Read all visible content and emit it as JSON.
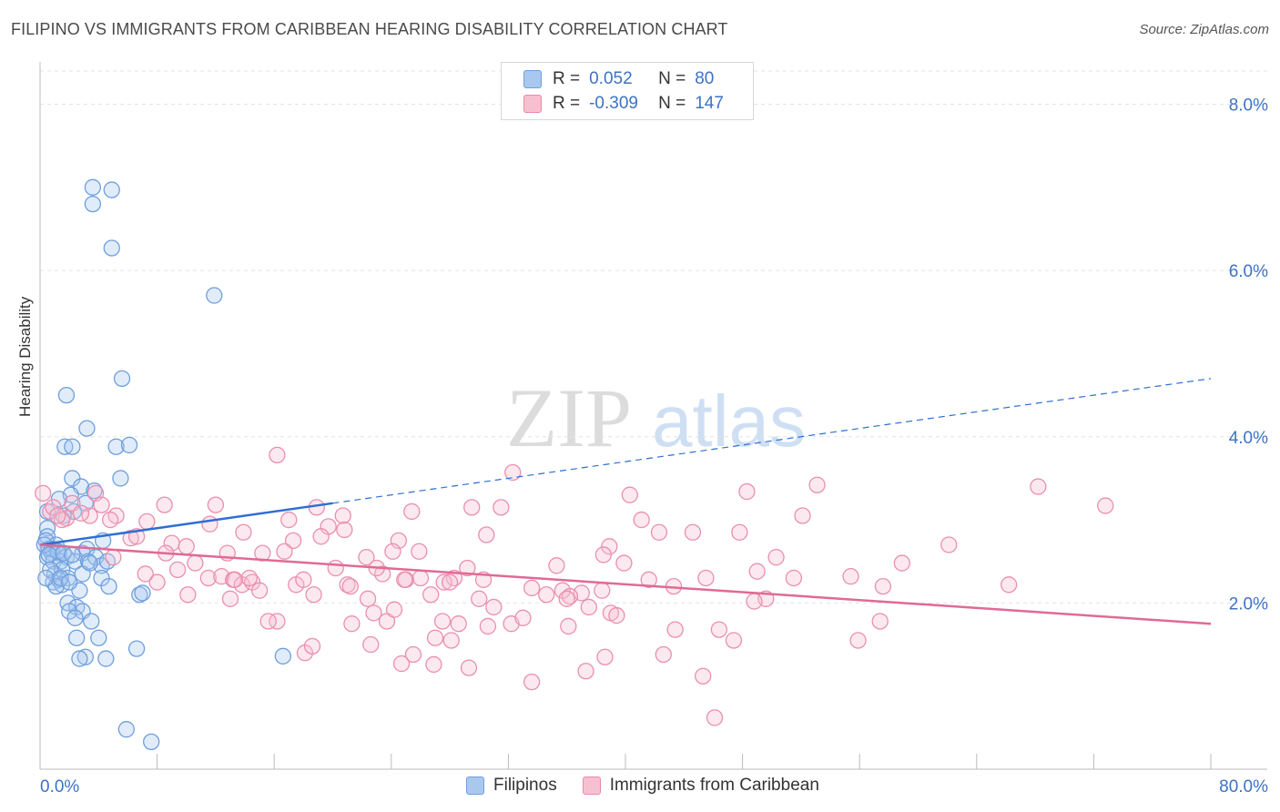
{
  "title": "FILIPINO VS IMMIGRANTS FROM CARIBBEAN HEARING DISABILITY CORRELATION CHART",
  "source": "Source: ZipAtlas.com",
  "watermark": {
    "zip": "ZIP",
    "atlas": "atlas"
  },
  "legend": {
    "rows": [
      {
        "r_label": "R =",
        "r_value": "0.052",
        "n_label": "N =",
        "n_value": "80",
        "color": "#a9c8f0",
        "border": "#6e9fdc"
      },
      {
        "r_label": "R =",
        "r_value": "-0.309",
        "n_label": "N =",
        "n_value": "147",
        "color": "#f7c0d0",
        "border": "#e88aa8"
      }
    ]
  },
  "bottom_legend": {
    "filipinos": "Filipinos",
    "caribbean": "Immigrants from Caribbean"
  },
  "colors": {
    "blue": "#6e9fdc",
    "blue_line": "#2e6fd3",
    "pink": "#ea8fae",
    "pink_line": "#e06a95",
    "axis_text": "#3d72c6",
    "grid": "#e3e3e3"
  },
  "chart_data": {
    "type": "scatter",
    "title": "FILIPINO VS IMMIGRANTS FROM CARIBBEAN HEARING DISABILITY CORRELATION CHART",
    "xlabel": "",
    "ylabel": "Hearing Disability",
    "xlim": [
      0,
      80
    ],
    "ylim": [
      0,
      8.4
    ],
    "x_tick_labels": [
      "0.0%",
      "80.0%"
    ],
    "y_tick_values": [
      2,
      4,
      6,
      8
    ],
    "y_tick_labels": [
      "2.0%",
      "4.0%",
      "6.0%",
      "8.0%"
    ],
    "series": [
      {
        "name": "Filipinos",
        "r": 0.052,
        "n": 80,
        "trend": {
          "x": [
            0,
            80
          ],
          "y": [
            2.7,
            4.7
          ],
          "solid_until_x": 20
        },
        "points": [
          [
            3.6,
            7.0
          ],
          [
            4.9,
            6.97
          ],
          [
            3.6,
            6.8
          ],
          [
            4.9,
            6.27
          ],
          [
            11.9,
            5.7
          ],
          [
            1.8,
            4.5
          ],
          [
            5.6,
            4.7
          ],
          [
            3.2,
            4.1
          ],
          [
            1.7,
            3.88
          ],
          [
            2.2,
            3.88
          ],
          [
            5.2,
            3.88
          ],
          [
            6.1,
            3.9
          ],
          [
            2.2,
            3.5
          ],
          [
            5.5,
            3.5
          ],
          [
            2.8,
            3.4
          ],
          [
            3.7,
            3.35
          ],
          [
            2.1,
            3.3
          ],
          [
            1.3,
            3.25
          ],
          [
            3.1,
            3.2
          ],
          [
            0.5,
            3.1
          ],
          [
            2.3,
            3.1
          ],
          [
            1.6,
            3.05
          ],
          [
            0.5,
            2.9
          ],
          [
            0.5,
            2.8
          ],
          [
            0.4,
            2.75
          ],
          [
            1.1,
            2.7
          ],
          [
            4.3,
            2.75
          ],
          [
            0.6,
            2.65
          ],
          [
            0.8,
            2.6
          ],
          [
            1.3,
            2.6
          ],
          [
            1.8,
            2.55
          ],
          [
            2.9,
            2.6
          ],
          [
            3.2,
            2.65
          ],
          [
            0.5,
            2.55
          ],
          [
            0.9,
            2.5
          ],
          [
            1.4,
            2.5
          ],
          [
            2.4,
            2.5
          ],
          [
            3.3,
            2.5
          ],
          [
            3.8,
            2.55
          ],
          [
            4.2,
            2.45
          ],
          [
            4.6,
            2.5
          ],
          [
            1.0,
            2.35
          ],
          [
            1.5,
            2.4
          ],
          [
            1.9,
            2.3
          ],
          [
            2.9,
            2.35
          ],
          [
            4.2,
            2.3
          ],
          [
            0.9,
            2.25
          ],
          [
            1.3,
            2.28
          ],
          [
            1.5,
            2.22
          ],
          [
            4.7,
            2.2
          ],
          [
            1.1,
            2.2
          ],
          [
            2.7,
            2.15
          ],
          [
            6.8,
            2.1
          ],
          [
            7.0,
            2.12
          ],
          [
            1.9,
            2.0
          ],
          [
            2.5,
            1.95
          ],
          [
            2.0,
            1.9
          ],
          [
            2.9,
            1.9
          ],
          [
            2.4,
            1.82
          ],
          [
            3.5,
            1.78
          ],
          [
            2.5,
            1.58
          ],
          [
            4.0,
            1.58
          ],
          [
            6.6,
            1.45
          ],
          [
            3.1,
            1.35
          ],
          [
            2.7,
            1.33
          ],
          [
            4.5,
            1.33
          ],
          [
            16.6,
            1.36
          ],
          [
            5.9,
            0.48
          ],
          [
            7.6,
            0.33
          ],
          [
            0.8,
            2.65
          ],
          [
            1.2,
            2.62
          ],
          [
            0.3,
            2.7
          ],
          [
            0.6,
            2.58
          ],
          [
            1.6,
            2.6
          ],
          [
            2.2,
            2.58
          ],
          [
            3.4,
            2.48
          ],
          [
            0.7,
            2.4
          ],
          [
            1.4,
            2.3
          ],
          [
            2.0,
            2.25
          ],
          [
            0.4,
            2.3
          ]
        ]
      },
      {
        "name": "Immigrants from Caribbean",
        "r": -0.309,
        "n": 147,
        "trend": {
          "x": [
            0,
            80
          ],
          "y": [
            2.7,
            1.75
          ]
        },
        "points": [
          [
            0.2,
            3.32
          ],
          [
            16.2,
            3.78
          ],
          [
            32.3,
            3.57
          ],
          [
            31.5,
            3.15
          ],
          [
            40.3,
            3.3
          ],
          [
            48.3,
            3.34
          ],
          [
            53.1,
            3.42
          ],
          [
            68.2,
            3.4
          ],
          [
            72.8,
            3.17
          ],
          [
            3.8,
            3.32
          ],
          [
            2.2,
            3.2
          ],
          [
            4.2,
            3.18
          ],
          [
            8.5,
            3.18
          ],
          [
            12.0,
            3.18
          ],
          [
            17.0,
            3.0
          ],
          [
            18.9,
            3.15
          ],
          [
            20.7,
            3.05
          ],
          [
            25.4,
            3.1
          ],
          [
            29.5,
            3.15
          ],
          [
            41.1,
            3.0
          ],
          [
            52.1,
            3.05
          ],
          [
            0.7,
            3.1
          ],
          [
            1.8,
            3.02
          ],
          [
            3.4,
            3.05
          ],
          [
            5.2,
            3.05
          ],
          [
            7.3,
            2.98
          ],
          [
            11.6,
            2.95
          ],
          [
            13.9,
            2.85
          ],
          [
            19.7,
            2.92
          ],
          [
            24.5,
            2.75
          ],
          [
            30.5,
            2.82
          ],
          [
            42.3,
            2.85
          ],
          [
            47.8,
            2.85
          ],
          [
            62.1,
            2.7
          ],
          [
            1.5,
            3.0
          ],
          [
            6.2,
            2.78
          ],
          [
            6.6,
            2.8
          ],
          [
            9.0,
            2.72
          ],
          [
            10.0,
            2.68
          ],
          [
            17.3,
            2.75
          ],
          [
            19.2,
            2.8
          ],
          [
            25.9,
            2.62
          ],
          [
            38.9,
            2.68
          ],
          [
            38.5,
            2.58
          ],
          [
            8.6,
            2.6
          ],
          [
            12.8,
            2.6
          ],
          [
            15.2,
            2.6
          ],
          [
            22.3,
            2.55
          ],
          [
            24.1,
            2.62
          ],
          [
            35.3,
            2.45
          ],
          [
            39.9,
            2.48
          ],
          [
            50.3,
            2.55
          ],
          [
            55.4,
            2.32
          ],
          [
            58.9,
            2.48
          ],
          [
            10.6,
            2.48
          ],
          [
            11.5,
            2.3
          ],
          [
            12.4,
            2.32
          ],
          [
            13.2,
            2.28
          ],
          [
            13.8,
            2.22
          ],
          [
            14.5,
            2.25
          ],
          [
            17.5,
            2.22
          ],
          [
            20.2,
            2.42
          ],
          [
            21.0,
            2.22
          ],
          [
            23.4,
            2.35
          ],
          [
            25.0,
            2.28
          ],
          [
            26.0,
            2.3
          ],
          [
            28.3,
            2.3
          ],
          [
            29.2,
            2.42
          ],
          [
            30.3,
            2.28
          ],
          [
            33.6,
            2.18
          ],
          [
            35.7,
            2.15
          ],
          [
            37.0,
            2.12
          ],
          [
            38.4,
            2.15
          ],
          [
            43.3,
            2.2
          ],
          [
            45.5,
            2.3
          ],
          [
            49.0,
            2.38
          ],
          [
            51.5,
            2.3
          ],
          [
            57.6,
            2.2
          ],
          [
            66.2,
            2.22
          ],
          [
            8.0,
            2.25
          ],
          [
            10.1,
            2.1
          ],
          [
            13.0,
            2.05
          ],
          [
            15.0,
            2.15
          ],
          [
            18.7,
            2.1
          ],
          [
            21.2,
            2.2
          ],
          [
            22.4,
            2.05
          ],
          [
            24.9,
            2.28
          ],
          [
            26.7,
            2.1
          ],
          [
            30.0,
            2.05
          ],
          [
            31.0,
            1.95
          ],
          [
            34.6,
            2.1
          ],
          [
            36.2,
            2.08
          ],
          [
            37.5,
            1.95
          ],
          [
            39.0,
            1.88
          ],
          [
            49.6,
            2.05
          ],
          [
            7.2,
            2.35
          ],
          [
            14.3,
            2.3
          ],
          [
            18.0,
            2.28
          ],
          [
            23.0,
            2.42
          ],
          [
            27.6,
            2.25
          ],
          [
            16.2,
            1.78
          ],
          [
            15.6,
            1.78
          ],
          [
            21.3,
            1.75
          ],
          [
            22.8,
            1.88
          ],
          [
            23.7,
            1.78
          ],
          [
            24.2,
            1.92
          ],
          [
            27.5,
            1.78
          ],
          [
            28.6,
            1.75
          ],
          [
            30.6,
            1.72
          ],
          [
            32.2,
            1.75
          ],
          [
            33.0,
            1.82
          ],
          [
            36.1,
            1.72
          ],
          [
            39.4,
            1.85
          ],
          [
            46.4,
            1.68
          ],
          [
            47.4,
            1.55
          ],
          [
            55.9,
            1.55
          ],
          [
            57.4,
            1.78
          ],
          [
            18.1,
            1.4
          ],
          [
            18.6,
            1.48
          ],
          [
            22.6,
            1.5
          ],
          [
            25.5,
            1.38
          ],
          [
            27.0,
            1.58
          ],
          [
            26.9,
            1.26
          ],
          [
            24.7,
            1.27
          ],
          [
            28.1,
            1.55
          ],
          [
            29.3,
            1.22
          ],
          [
            33.6,
            1.05
          ],
          [
            37.3,
            1.18
          ],
          [
            38.6,
            1.35
          ],
          [
            42.6,
            1.38
          ],
          [
            45.3,
            1.12
          ],
          [
            46.1,
            0.62
          ],
          [
            43.4,
            1.68
          ],
          [
            44.6,
            2.85
          ],
          [
            41.6,
            2.28
          ],
          [
            13.3,
            2.28
          ],
          [
            16.7,
            2.62
          ],
          [
            9.4,
            2.4
          ],
          [
            36.0,
            2.05
          ],
          [
            48.8,
            2.02
          ],
          [
            5.0,
            2.55
          ],
          [
            4.8,
            3.0
          ],
          [
            2.8,
            3.08
          ],
          [
            0.9,
            3.15
          ],
          [
            1.2,
            3.05
          ],
          [
            20.8,
            2.88
          ],
          [
            28.0,
            2.25
          ]
        ]
      }
    ]
  }
}
